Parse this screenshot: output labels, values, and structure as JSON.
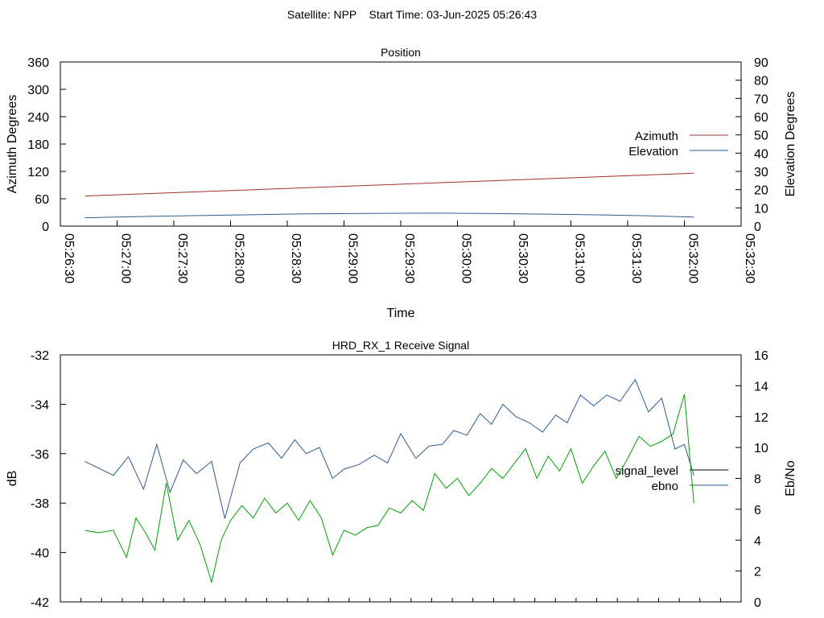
{
  "header": {
    "title": "Satellite: NPP    Start Time: 03-Jun-2025 05:26:43"
  },
  "chart_data": [
    {
      "type": "line",
      "title": "Position",
      "xlabel": "Time",
      "ylabel": "Azimuth Degrees",
      "y2label": "Elevation Degrees",
      "xlim": [
        "05:26:30",
        "05:32:30"
      ],
      "ylim": [
        0,
        360
      ],
      "y2lim": [
        0,
        90
      ],
      "x_ticks": [
        "05:26:30",
        "05:27:00",
        "05:27:30",
        "05:28:00",
        "05:28:30",
        "05:29:00",
        "05:29:30",
        "05:30:00",
        "05:30:30",
        "05:31:00",
        "05:31:30",
        "05:32:00",
        "05:32:30"
      ],
      "y_ticks": [
        "0",
        "60",
        "120",
        "180",
        "240",
        "300",
        "360"
      ],
      "y2_ticks": [
        "0",
        "10",
        "20",
        "30",
        "40",
        "50",
        "60",
        "70",
        "80",
        "90"
      ],
      "legend": "right",
      "grid": false,
      "series": [
        {
          "name": "Azimuth",
          "axis": "left",
          "color": "#a0302e",
          "x": [
            "05:26:43",
            "05:32:05"
          ],
          "values": [
            66,
            116
          ]
        },
        {
          "name": "Elevation",
          "axis": "right",
          "color": "#2d5c94",
          "x": [
            "05:26:43",
            "05:27:20",
            "05:28:00",
            "05:28:40",
            "05:29:20",
            "05:29:50",
            "05:30:20",
            "05:31:00",
            "05:31:40",
            "05:32:05"
          ],
          "values": [
            4.6,
            5.4,
            6.1,
            6.7,
            7.0,
            7.1,
            6.9,
            6.4,
            5.7,
            5.0
          ]
        }
      ]
    },
    {
      "type": "line",
      "title": "HRD_RX_1 Receive Signal",
      "ylabel": "dB",
      "y2label": "Eb/No",
      "ylim": [
        -42,
        -32
      ],
      "y2lim": [
        0,
        16
      ],
      "y_ticks": [
        "-42",
        "-40",
        "-38",
        "-36",
        "-34",
        "-32"
      ],
      "y2_ticks": [
        "0",
        "2",
        "4",
        "6",
        "8",
        "10",
        "12",
        "14",
        "16"
      ],
      "x_minor_tick_count": 33,
      "legend": "right",
      "grid": false,
      "series": [
        {
          "name": "signal_level",
          "axis": "left",
          "color": "#000000",
          "legend_only": true,
          "values": []
        },
        {
          "name": "ebno",
          "axis": "right",
          "color": "#2d5c94",
          "x": [
            "05:26:43",
            "05:26:58",
            "05:27:06",
            "05:27:14",
            "05:27:21",
            "05:27:28",
            "05:27:35",
            "05:27:42",
            "05:27:50",
            "05:27:57",
            "05:28:05",
            "05:28:12",
            "05:28:20",
            "05:28:27",
            "05:28:34",
            "05:28:40",
            "05:28:47",
            "05:28:54",
            "05:29:00",
            "05:29:08",
            "05:29:16",
            "05:29:23",
            "05:29:30",
            "05:29:38",
            "05:29:45",
            "05:29:52",
            "05:29:58",
            "05:30:05",
            "05:30:12",
            "05:30:18",
            "05:30:24",
            "05:30:31",
            "05:30:38",
            "05:30:45",
            "05:30:52",
            "05:30:58",
            "05:31:05",
            "05:31:12",
            "05:31:19",
            "05:31:26",
            "05:31:34",
            "05:31:41",
            "05:31:48",
            "05:31:55",
            "05:32:00",
            "05:32:05"
          ],
          "values": [
            9.1,
            8.2,
            9.4,
            7.3,
            10.2,
            7.1,
            9.2,
            8.3,
            9.1,
            5.4,
            9.0,
            9.9,
            10.3,
            9.3,
            10.5,
            9.6,
            10.0,
            8.0,
            8.6,
            8.9,
            9.5,
            9.0,
            10.9,
            9.3,
            10.1,
            10.2,
            11.1,
            10.8,
            12.2,
            11.5,
            12.8,
            12.0,
            11.6,
            11.0,
            12.1,
            11.6,
            13.4,
            12.7,
            13.4,
            13.0,
            14.4,
            12.3,
            13.2,
            9.9,
            10.2,
            8.2
          ]
        },
        {
          "name": "",
          "axis": "left",
          "color": "#00a000",
          "x": [
            "05:26:43",
            "05:26:50",
            "05:26:58",
            "05:27:05",
            "05:27:10",
            "05:27:15",
            "05:27:20",
            "05:27:26",
            "05:27:32",
            "05:27:38",
            "05:27:44",
            "05:27:50",
            "05:27:55",
            "05:28:00",
            "05:28:06",
            "05:28:12",
            "05:28:18",
            "05:28:24",
            "05:28:30",
            "05:28:36",
            "05:28:42",
            "05:28:48",
            "05:28:54",
            "05:29:00",
            "05:29:06",
            "05:29:12",
            "05:29:18",
            "05:29:24",
            "05:29:30",
            "05:29:36",
            "05:29:42",
            "05:29:48",
            "05:29:54",
            "05:30:00",
            "05:30:06",
            "05:30:12",
            "05:30:18",
            "05:30:24",
            "05:30:30",
            "05:30:36",
            "05:30:42",
            "05:30:48",
            "05:30:54",
            "05:31:00",
            "05:31:06",
            "05:31:12",
            "05:31:18",
            "05:31:24",
            "05:31:30",
            "05:31:36",
            "05:31:42",
            "05:31:48",
            "05:31:54",
            "05:32:00",
            "05:32:05"
          ],
          "values": [
            -39.1,
            -39.2,
            -39.1,
            -40.2,
            -38.6,
            -39.2,
            -39.9,
            -37.2,
            -39.5,
            -38.7,
            -39.7,
            -41.2,
            -39.5,
            -38.7,
            -38.1,
            -38.6,
            -37.8,
            -38.4,
            -38.0,
            -38.7,
            -37.9,
            -38.6,
            -40.1,
            -39.1,
            -39.3,
            -39.0,
            -38.9,
            -38.2,
            -38.4,
            -37.9,
            -38.3,
            -36.8,
            -37.4,
            -37.0,
            -37.7,
            -37.2,
            -36.6,
            -37.0,
            -36.4,
            -35.8,
            -37.0,
            -36.1,
            -36.7,
            -35.8,
            -37.2,
            -36.5,
            -35.9,
            -37.0,
            -36.2,
            -35.3,
            -35.7,
            -35.5,
            -35.2,
            -33.6,
            -38.0
          ]
        }
      ]
    }
  ]
}
